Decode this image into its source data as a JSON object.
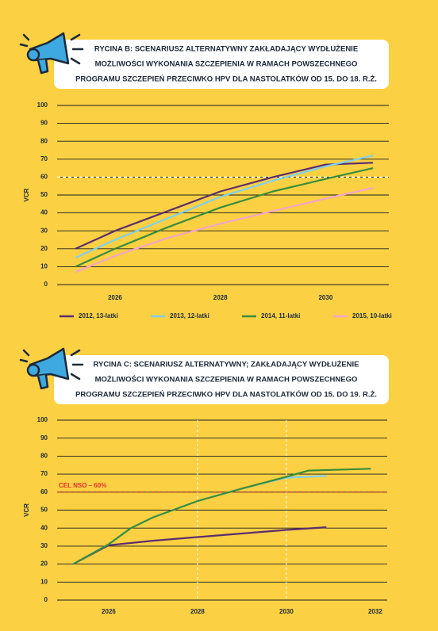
{
  "chart_data": [
    {
      "type": "line",
      "title": [
        "RYCINA B: SCENARIUSZ ALTERNATYWNY ZAKŁADAJĄCY WYDŁUŻENIE",
        "MOŻLIWOŚCI WYKONANIA SZCZEPIENIA W RAMACH POWSZECHNEGO",
        "PROGRAMU SZCZEPIEŃ PRZECIWKO HPV DLA NASTOLATKÓW OD 15. DO 18. R.Ż."
      ],
      "y_label": "VCR",
      "xlim": [
        2024.9,
        2031.2
      ],
      "xticks": [
        2026,
        2028,
        2030
      ],
      "ylim": [
        0,
        100
      ],
      "yticks": [
        0,
        10,
        20,
        30,
        40,
        50,
        60,
        70,
        80,
        90,
        100
      ],
      "grid": true,
      "reference_line": {
        "value": 60,
        "color": "#ffffff"
      },
      "series": [
        {
          "name": "2012, 13-latki",
          "color": "#5b2d6e",
          "x": [
            2025.25,
            2026,
            2027,
            2028,
            2029,
            2030,
            2030.9
          ],
          "values": [
            20,
            30,
            41,
            52,
            60,
            67,
            68
          ]
        },
        {
          "name": "2013, 12-latki",
          "color": "#7fd0ec",
          "x": [
            2025.25,
            2026,
            2027,
            2028,
            2029,
            2030,
            2030.9
          ],
          "values": [
            15,
            25,
            37,
            49,
            58,
            66,
            72
          ]
        },
        {
          "name": "2014, 11-latki",
          "color": "#3a8d3a",
          "x": [
            2025.25,
            2026,
            2027,
            2028,
            2029,
            2030,
            2030.9
          ],
          "values": [
            10,
            20,
            32,
            43,
            52,
            59,
            65
          ]
        },
        {
          "name": "2015, 10-latki",
          "color": "#f4a6c8",
          "x": [
            2025.25,
            2026,
            2027,
            2028,
            2029,
            2030,
            2030.9
          ],
          "values": [
            7,
            16,
            26,
            34,
            41,
            48,
            54
          ]
        }
      ]
    },
    {
      "type": "line",
      "title": [
        "RYCINA C: SCENARIUSZ ALTERNATYWNY; ZAKŁADAJĄCY WYDŁUŻENIE",
        "MOŻLIWOŚCI WYKONANIA SZCZEPIENIA W RAMACH POWSZECHNEGO",
        "PROGRAMU SZCZEPIEŃ PRZECIWKO HPV DLA NASTOLATKÓW OD 15. DO 19. R.Ż."
      ],
      "y_label": "VCR",
      "xlim": [
        2024.84,
        2032.27
      ],
      "xticks": [
        2026,
        2028,
        2030,
        2032
      ],
      "ylim": [
        0,
        100
      ],
      "yticks": [
        0,
        10,
        20,
        30,
        40,
        50,
        60,
        70,
        80,
        90,
        100
      ],
      "grid": true,
      "vlines": [
        2028,
        2030
      ],
      "reference_line": {
        "value": 60,
        "color": "#e0322d",
        "label": "CEL NSO – 60%"
      },
      "series": [
        {
          "color": "#5b2d6e",
          "x": [
            2025.2,
            2026,
            2027,
            2028,
            2029,
            2030,
            2030.9
          ],
          "values": [
            20,
            30.5,
            33,
            35,
            37,
            39,
            40.5
          ]
        },
        {
          "color": "#7fd0ec",
          "x": [
            2025.2,
            2026,
            2026.5,
            2027,
            2028,
            2029,
            2030,
            2030.9
          ],
          "values": [
            20,
            31,
            40,
            46,
            55,
            62,
            68,
            69
          ]
        },
        {
          "color": "#3a8d3a",
          "x": [
            2025.2,
            2026,
            2026.5,
            2027,
            2028,
            2029,
            2030,
            2030.5,
            2031.9
          ],
          "values": [
            20,
            31,
            40,
            46,
            55,
            62,
            68.5,
            72,
            73
          ]
        }
      ]
    }
  ]
}
